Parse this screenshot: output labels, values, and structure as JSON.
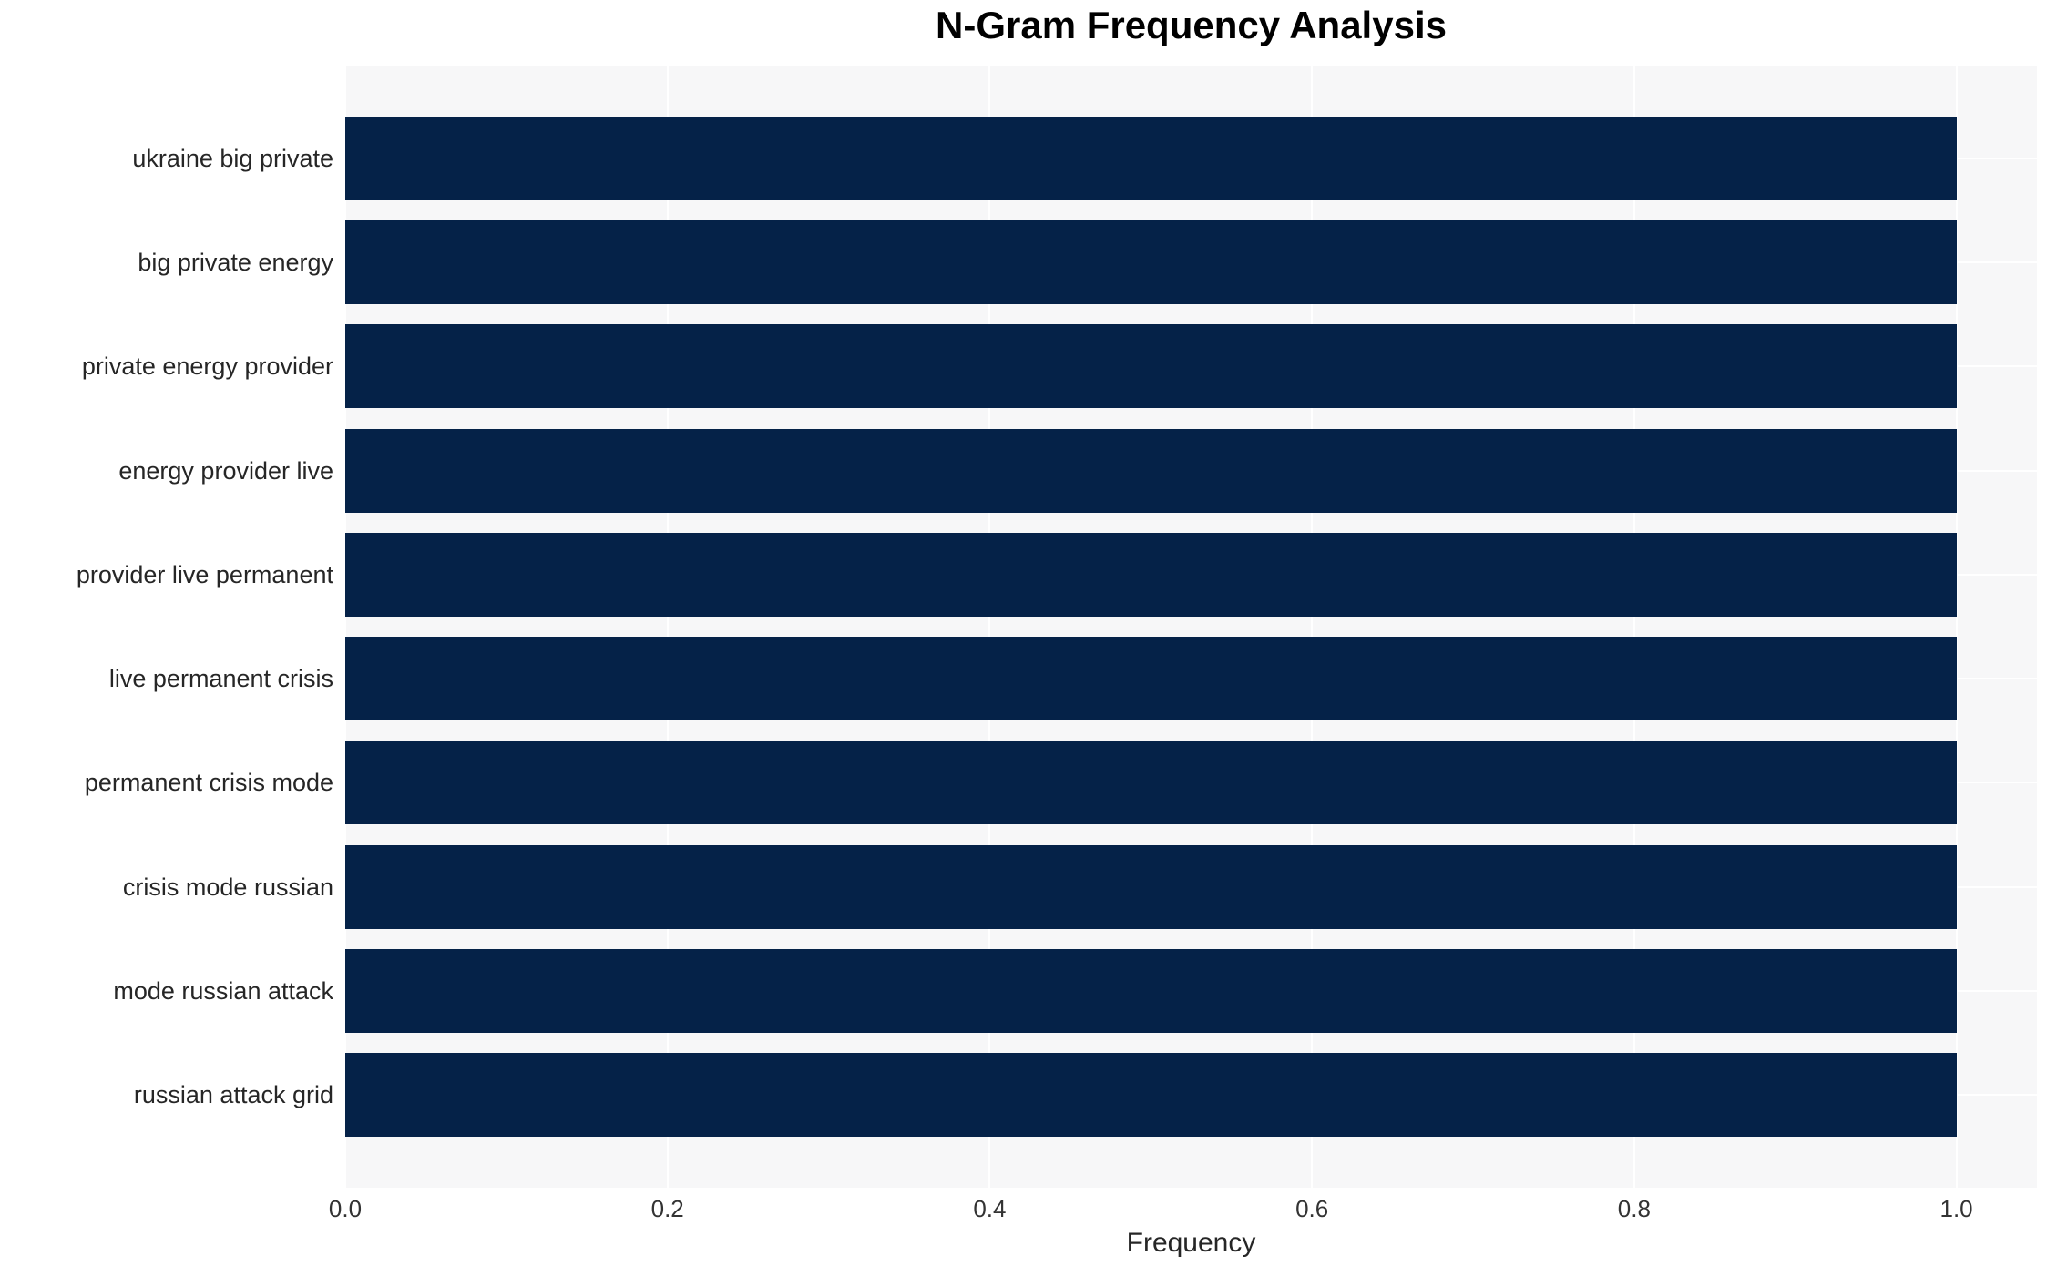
{
  "chart_data": {
    "type": "bar",
    "orientation": "horizontal",
    "title": "N-Gram Frequency Analysis",
    "xlabel": "Frequency",
    "ylabel": "",
    "categories": [
      "ukraine big private",
      "big private energy",
      "private energy provider",
      "energy provider live",
      "provider live permanent",
      "live permanent crisis",
      "permanent crisis mode",
      "crisis mode russian",
      "mode russian attack",
      "russian attack grid"
    ],
    "values": [
      1.0,
      1.0,
      1.0,
      1.0,
      1.0,
      1.0,
      1.0,
      1.0,
      1.0,
      1.0
    ],
    "xticks": [
      0.0,
      0.2,
      0.4,
      0.6,
      0.8,
      1.0
    ],
    "xlim": [
      0,
      1.05
    ],
    "grid": "on",
    "legend": "none",
    "colors": {
      "bar": "#052248",
      "plot_background": "#f7f7f8",
      "gridline": "#ffffff",
      "title_text": "#000000",
      "axis_text": "#333333",
      "label_text": "#262626",
      "figure_background": "#ffffff"
    }
  }
}
